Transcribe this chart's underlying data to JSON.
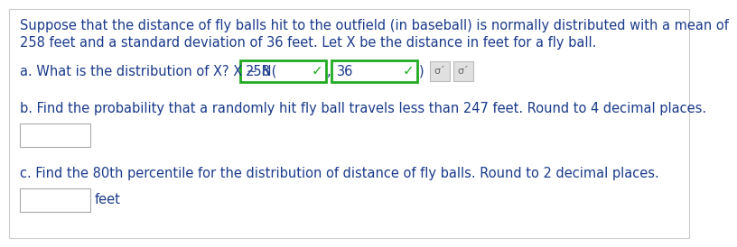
{
  "bg_color": "#ffffff",
  "text_color": "#1a1a1a",
  "blue_text_color": "#1a3a8a",
  "paragraph_text_line1": "Suppose that the distance of fly balls hit to the outfield (in baseball) is normally distributed with a mean of",
  "paragraph_text_line2": "258 feet and a standard deviation of 36 feet. Let X be the distance in feet for a fly ball.",
  "line_a_prefix": "a. What is the distribution of X? X ∼ N(",
  "line_a_val1": "258",
  "line_a_val2": "36",
  "line_b": "b. Find the probability that a randomly hit fly ball travels less than 247 feet. Round to 4 decimal places.",
  "line_c": "c. Find the 80th percentile for the distribution of distance of fly balls. Round to 2 decimal places.",
  "feet_label": "feet",
  "check_color": "#22aa22",
  "box_green_border": "#22aa22",
  "box_gray_border": "#bbbbbb",
  "box_light_gray_fill": "#e0e0e0",
  "answer_box_border": "#aaaaaa",
  "outer_border": "#cccccc",
  "font_size_main": 10.5,
  "font_size_box": 10.5
}
